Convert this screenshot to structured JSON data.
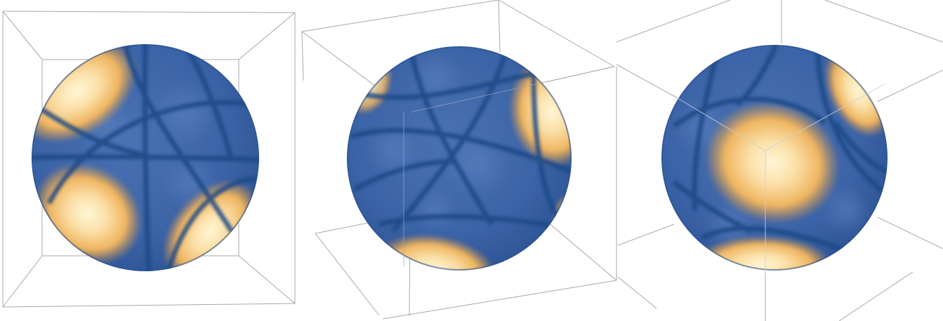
{
  "panels": [
    {
      "view": "front"
    },
    {
      "view": "tilted"
    },
    {
      "view": "corner"
    }
  ],
  "colors": {
    "background": "#ffffff",
    "box_edge": "#9a9a9a",
    "sphere_base": "#3d64a8",
    "sphere_dark": "#24508f",
    "nodal_line": "#1f4a86",
    "lobe_center": "#fff3c9",
    "lobe_mid": "#f6cd86",
    "lobe_edge": "#e49a3e"
  }
}
